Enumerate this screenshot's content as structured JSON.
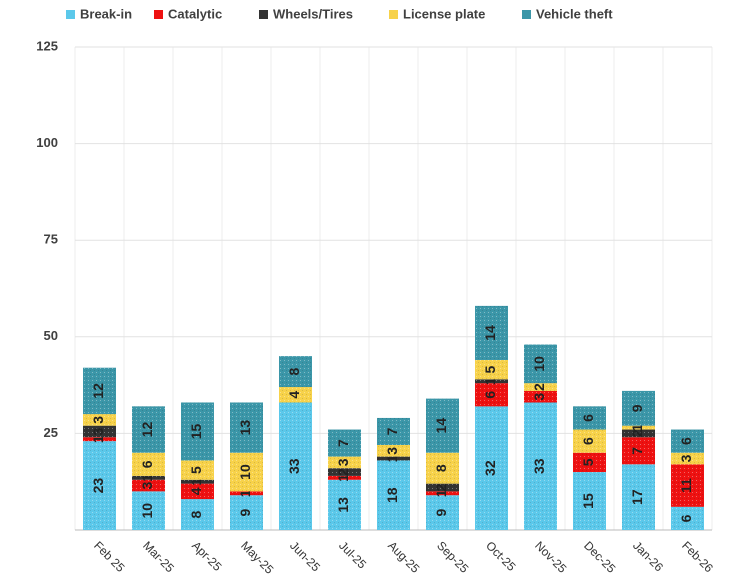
{
  "chart_data": {
    "type": "stacked_bar",
    "categories": [
      "Feb 25",
      "Mar-25",
      "Apr-25",
      "May-25",
      "Jun-25",
      "Jul-25",
      "Aug-25",
      "Sep-25",
      "Oct-25",
      "Nov-25",
      "Dec-25",
      "Jan-26",
      "Feb-26"
    ],
    "series": [
      {
        "name": "Break-in",
        "color": "#5bc8ea",
        "values": [
          23,
          10,
          8,
          9,
          33,
          13,
          18,
          9,
          32,
          33,
          15,
          17,
          6
        ]
      },
      {
        "name": "Catalytic",
        "color": "#ee1111",
        "values": [
          1,
          3,
          4,
          1,
          0,
          1,
          0,
          1,
          6,
          3,
          5,
          7,
          11
        ]
      },
      {
        "name": "Wheels/Tires",
        "color": "#333333",
        "values": [
          3,
          1,
          1,
          0,
          0,
          2,
          1,
          2,
          1,
          0,
          0,
          2,
          0
        ]
      },
      {
        "name": "License plate",
        "color": "#f7d24a",
        "values": [
          3,
          6,
          5,
          10,
          4,
          3,
          3,
          8,
          5,
          2,
          6,
          1,
          3
        ]
      },
      {
        "name": "Vehicle theft",
        "color": "#3b96a8",
        "values": [
          12,
          12,
          15,
          13,
          8,
          7,
          7,
          14,
          14,
          10,
          6,
          9,
          6
        ]
      }
    ],
    "ylim": [
      0,
      125
    ],
    "yticks": [
      25,
      50,
      75,
      100,
      125
    ],
    "grid": true,
    "legend": "top"
  }
}
